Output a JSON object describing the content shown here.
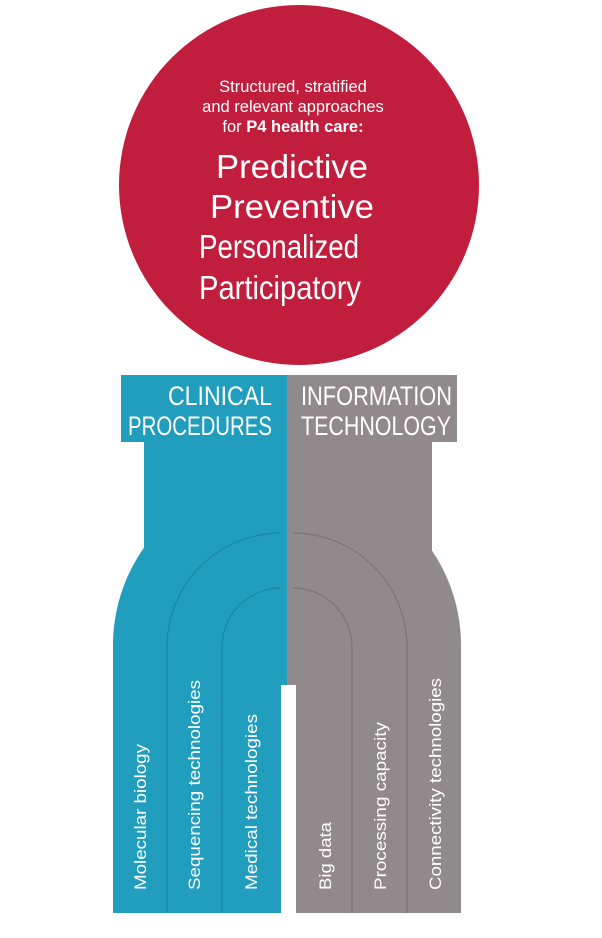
{
  "circle": {
    "intro_lines": [
      "Structured, stratified",
      "and relevant approaches"
    ],
    "intro_prefix": "for ",
    "intro_bold": "P4 health care:",
    "principles": [
      "Predictive",
      "Preventive",
      "Personalized",
      "Participatory"
    ]
  },
  "clinical": {
    "title_lines": [
      "CLINICAL",
      "PROCEDURES"
    ],
    "pillars": [
      "Molecular biology",
      "Sequencing technologies",
      "Medical technologies"
    ]
  },
  "it": {
    "title_lines": [
      "INFORMATION",
      "TECHNOLOGY"
    ],
    "pillars": [
      "Big data",
      "Processing capacity",
      "Connectivity technologies"
    ]
  },
  "colors": {
    "circle": "#c11d3c",
    "clinical": "#219dbd",
    "clinical_dark": "#1a87a3",
    "it": "#918a8c",
    "it_dark": "#7a7476",
    "text_light": "#ffffff"
  }
}
